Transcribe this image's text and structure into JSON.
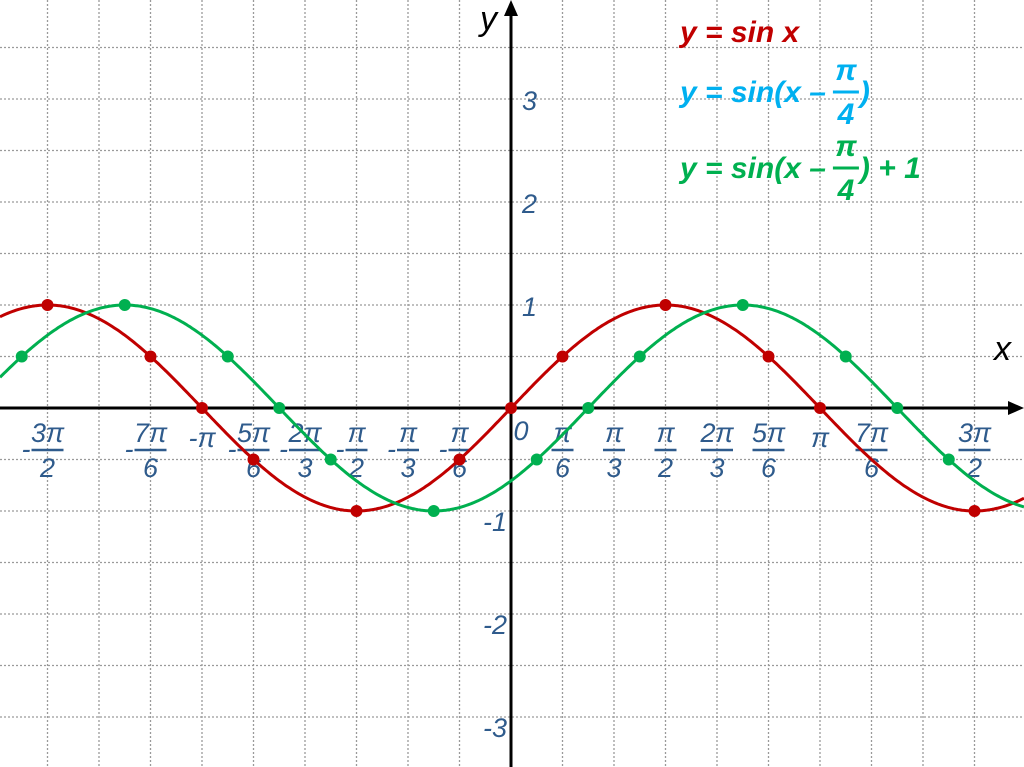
{
  "chart_data": {
    "type": "line",
    "title": "",
    "xlabel": "x",
    "ylabel": "y",
    "x_unit": "π",
    "xlim_pi": [
      -1.655,
      1.65
    ],
    "ylim": [
      -3.5,
      3.9
    ],
    "grid": true,
    "grid_step_x_pi": 0.16667,
    "grid_step_y": 0.5,
    "legend_placement": "top-right",
    "x_ticks": [
      {
        "x_pi": -1.5,
        "sign": "-",
        "num": "3π",
        "den": "2"
      },
      {
        "x_pi": -1.16667,
        "sign": "-",
        "num": "7π",
        "den": "6"
      },
      {
        "x_pi": -1,
        "text": "-π"
      },
      {
        "x_pi": -0.83333,
        "sign": "-",
        "num": "5π",
        "den": "6"
      },
      {
        "x_pi": -0.66667,
        "sign": "-",
        "num": "2π",
        "den": "3"
      },
      {
        "x_pi": -0.5,
        "sign": "-",
        "num": "π",
        "den": "2"
      },
      {
        "x_pi": -0.33333,
        "sign": "-",
        "num": "π",
        "den": "3"
      },
      {
        "x_pi": -0.16667,
        "sign": "-",
        "num": "π",
        "den": "6"
      },
      {
        "x_pi": 0,
        "text": "0"
      },
      {
        "x_pi": 0.16667,
        "num": "π",
        "den": "6"
      },
      {
        "x_pi": 0.33333,
        "num": "π",
        "den": "3"
      },
      {
        "x_pi": 0.5,
        "num": "π",
        "den": "2"
      },
      {
        "x_pi": 0.66667,
        "num": "2π",
        "den": "3"
      },
      {
        "x_pi": 0.83333,
        "num": "5π",
        "den": "6"
      },
      {
        "x_pi": 1,
        "text": "π"
      },
      {
        "x_pi": 1.16667,
        "num": "7π",
        "den": "6"
      },
      {
        "x_pi": 1.5,
        "num": "3π",
        "den": "2"
      }
    ],
    "y_ticks": [
      {
        "y": 3,
        "text": "3"
      },
      {
        "y": 2,
        "text": "2"
      },
      {
        "y": 1,
        "text": "1"
      },
      {
        "y": -1,
        "text": "-1"
      },
      {
        "y": -2,
        "text": "-2"
      },
      {
        "y": -3,
        "text": "-3"
      }
    ],
    "series": [
      {
        "function": "sin(x)",
        "color": "#c00000",
        "points": [
          {
            "x_pi": -1.5,
            "y": 1
          },
          {
            "x_pi": -1.16667,
            "y": 0.5
          },
          {
            "x_pi": -1,
            "y": 0
          },
          {
            "x_pi": -0.83333,
            "y": -0.5
          },
          {
            "x_pi": -0.5,
            "y": -1
          },
          {
            "x_pi": -0.16667,
            "y": -0.5
          },
          {
            "x_pi": 0,
            "y": 0
          },
          {
            "x_pi": 0.16667,
            "y": 0.5
          },
          {
            "x_pi": 0.5,
            "y": 1
          },
          {
            "x_pi": 0.83333,
            "y": 0.5
          },
          {
            "x_pi": 1,
            "y": 0
          },
          {
            "x_pi": 1.5,
            "y": -1
          }
        ]
      },
      {
        "function": "sin(x - π/4)",
        "color": "#00b050",
        "points": [
          {
            "x_pi": -1.58333,
            "y": 0.5
          },
          {
            "x_pi": -1.25,
            "y": 1
          },
          {
            "x_pi": -0.91667,
            "y": 0.5
          },
          {
            "x_pi": -0.75,
            "y": 0
          },
          {
            "x_pi": -0.58333,
            "y": -0.5
          },
          {
            "x_pi": -0.25,
            "y": -1
          },
          {
            "x_pi": 0.08333,
            "y": -0.5
          },
          {
            "x_pi": 0.25,
            "y": 0
          },
          {
            "x_pi": 0.41667,
            "y": 0.5
          },
          {
            "x_pi": 0.75,
            "y": 1
          },
          {
            "x_pi": 1.08333,
            "y": 0.5
          },
          {
            "x_pi": 1.25,
            "y": 0
          },
          {
            "x_pi": 1.41667,
            "y": -0.5
          }
        ]
      }
    ],
    "legend": [
      {
        "prefix": "y = sin x",
        "color": "#c00000"
      },
      {
        "prefix": "y = sin(x –",
        "num": "π",
        "den": "4",
        "suffix": ")",
        "color": "#00b0f0"
      },
      {
        "prefix": "y = sin(x –",
        "num": "π",
        "den": "4",
        "suffix": ") + 1",
        "color": "#00b050"
      }
    ]
  }
}
